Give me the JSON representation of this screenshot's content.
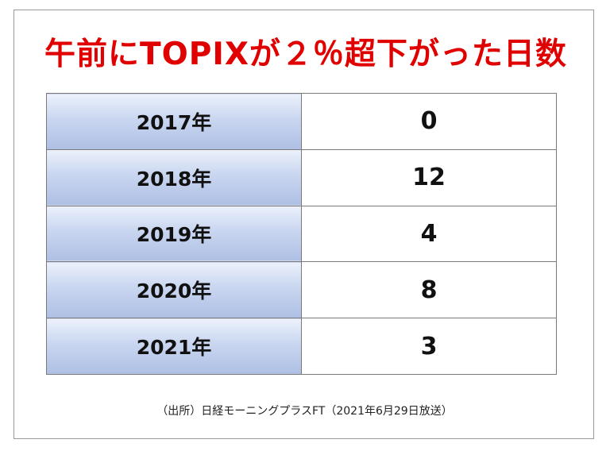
{
  "title": "午前にTOPIXが２％超下がった日数",
  "table": {
    "rows": [
      {
        "year": "2017年",
        "value": "0"
      },
      {
        "year": "2018年",
        "value": "12"
      },
      {
        "year": "2019年",
        "value": "4"
      },
      {
        "year": "2020年",
        "value": "8"
      },
      {
        "year": "2021年",
        "value": "3"
      }
    ]
  },
  "source": "（出所）日経モーニングプラスFT（2021年6月29日放送）",
  "colors": {
    "title": "#e00000",
    "header_gradient_top": "#ecf1fb",
    "header_gradient_bottom": "#aebfe4",
    "border": "#7a7a7a"
  }
}
